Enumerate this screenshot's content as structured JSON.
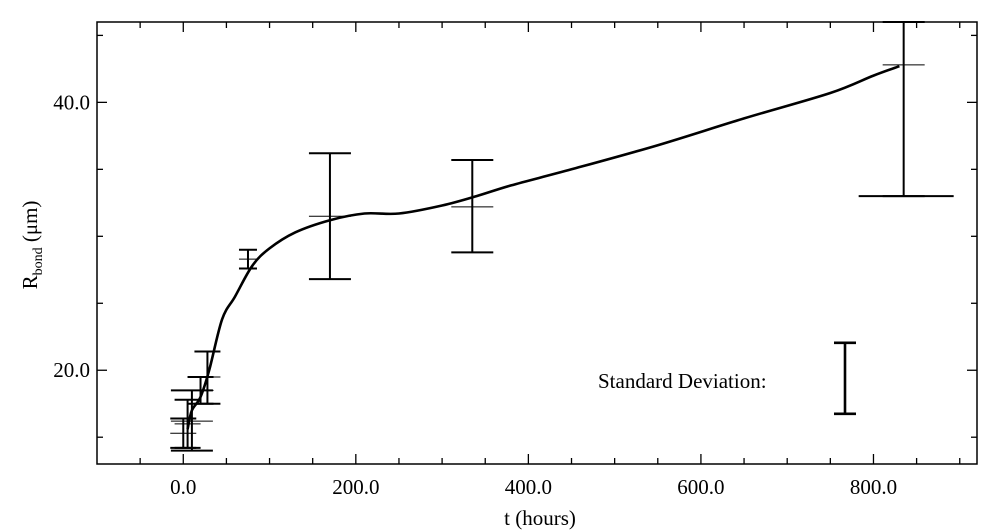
{
  "chart_data": {
    "type": "line",
    "title": "",
    "xlabel": "t (hours)",
    "ylabel_main": "R",
    "ylabel_sub": "bond",
    "ylabel_unit": " (μm)",
    "xlim": [
      -100,
      920
    ],
    "ylim": [
      13,
      46
    ],
    "x_ticks": [
      0,
      200,
      400,
      600,
      800
    ],
    "x_tick_labels": [
      "0.0",
      "200.0",
      "400.0",
      "600.0",
      "800.0"
    ],
    "y_ticks": [
      20,
      40
    ],
    "y_tick_labels": [
      "20.0",
      "40.0"
    ],
    "grid": false,
    "curve": {
      "x": [
        5,
        10,
        20,
        30,
        45,
        60,
        80,
        100,
        130,
        170,
        210,
        250,
        300,
        340,
        380,
        450,
        550,
        650,
        750,
        800,
        830
      ],
      "y": [
        15.6,
        17.0,
        18.0,
        20.0,
        23.8,
        25.5,
        27.8,
        29.1,
        30.3,
        31.2,
        31.7,
        31.7,
        32.3,
        33.0,
        33.8,
        35.0,
        36.8,
        38.8,
        40.7,
        42.0,
        42.7
      ]
    },
    "error_bars": [
      {
        "x": 0,
        "y": 15.3,
        "low": 14.2,
        "high": 16.4
      },
      {
        "x": 5,
        "y": 16.0,
        "low": 14.2,
        "high": 17.8
      },
      {
        "x": 10,
        "y": 16.2,
        "low": 14.0,
        "high": 18.5
      },
      {
        "x": 20,
        "y": 18.5,
        "low": 17.5,
        "high": 19.5
      },
      {
        "x": 28,
        "y": 19.5,
        "low": 17.5,
        "high": 21.4
      },
      {
        "x": 75,
        "y": 28.3,
        "low": 27.6,
        "high": 29.0
      },
      {
        "x": 170,
        "y": 31.5,
        "low": 26.8,
        "high": 36.2
      },
      {
        "x": 335,
        "y": 32.2,
        "low": 28.8,
        "high": 35.7
      },
      {
        "x": 835,
        "y": 42.8,
        "low": 33.0,
        "high": 46.0
      }
    ],
    "legend": {
      "label": "Standard Deviation:",
      "example_value": 5.3,
      "example_center": 19.4
    }
  }
}
